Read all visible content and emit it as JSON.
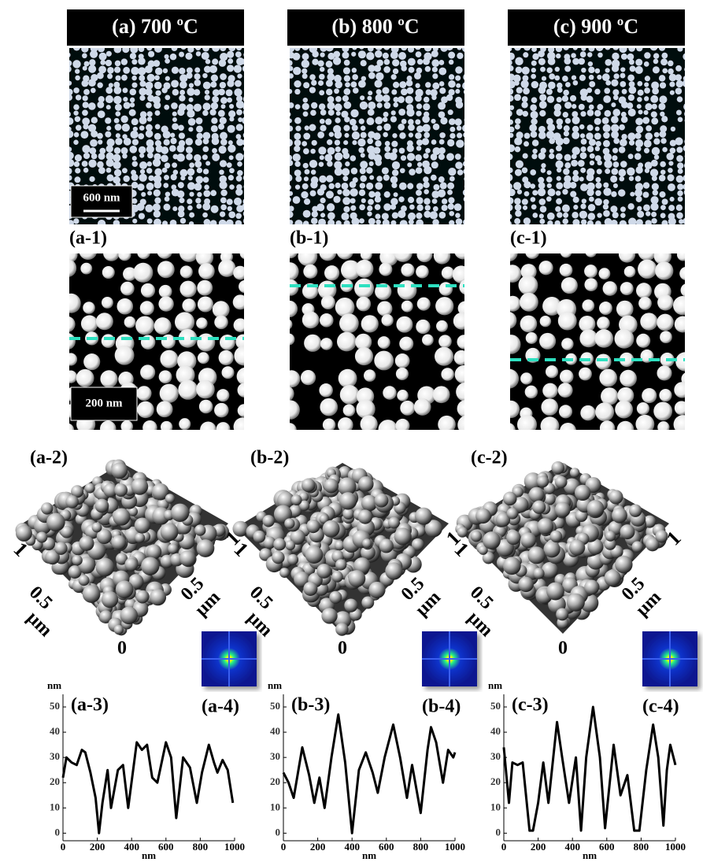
{
  "panels": [
    {
      "title": "(a) 700 ºC",
      "scale_bar": "600 nm",
      "zoom_label": "(a-1)",
      "zoom_scale_bar": "200 nm",
      "view3d_label": "(a-2)",
      "axis_3d": {
        "max": "1",
        "mid": "0.5",
        "unit": "µm",
        "origin": "0"
      },
      "fft_label": "(a-4)",
      "profile": {
        "type": "line",
        "label": "(a-3)",
        "y_unit": "nm",
        "x_unit": "nm",
        "x": [
          0,
          20,
          50,
          80,
          110,
          130,
          160,
          190,
          210,
          230,
          260,
          280,
          320,
          350,
          380,
          430,
          460,
          490,
          520,
          550,
          600,
          630,
          660,
          700,
          740,
          780,
          810,
          850,
          880,
          900,
          930,
          960,
          990
        ],
        "values": [
          22,
          30,
          28,
          27,
          33,
          32,
          24,
          14,
          0,
          12,
          25,
          10,
          25,
          27,
          10,
          36,
          33,
          35,
          22,
          20,
          36,
          30,
          6,
          30,
          26,
          12,
          24,
          35,
          28,
          24,
          29,
          25,
          12
        ],
        "xlim": [
          0,
          1000
        ],
        "ylim": [
          -3,
          55
        ],
        "xticks": [
          0,
          200,
          400,
          600,
          800,
          1000
        ],
        "yticks": [
          0,
          10,
          20,
          30,
          40,
          50
        ]
      }
    },
    {
      "title": "(b) 800 ºC",
      "zoom_label": "(b-1)",
      "view3d_label": "(b-2)",
      "axis_3d": {
        "max": "1",
        "mid": "0.5",
        "unit": "µm",
        "origin": "0"
      },
      "fft_label": "(b-4)",
      "profile": {
        "type": "line",
        "label": "(b-3)",
        "y_unit": "nm",
        "x_unit": "nm",
        "x": [
          0,
          30,
          60,
          110,
          150,
          180,
          210,
          240,
          280,
          320,
          360,
          400,
          440,
          480,
          520,
          550,
          590,
          640,
          680,
          720,
          750,
          800,
          840,
          860,
          890,
          930,
          960,
          990,
          1000
        ],
        "values": [
          24,
          20,
          14,
          34,
          23,
          12,
          22,
          10,
          30,
          47,
          28,
          0,
          25,
          32,
          24,
          16,
          30,
          43,
          30,
          14,
          27,
          8,
          33,
          42,
          36,
          20,
          33,
          30,
          32
        ],
        "xlim": [
          0,
          1000
        ],
        "ylim": [
          -3,
          55
        ],
        "xticks": [
          0,
          200,
          400,
          600,
          800,
          1000
        ],
        "yticks": [
          0,
          10,
          20,
          30,
          40,
          50
        ]
      }
    },
    {
      "title": "(c) 900 ºC",
      "zoom_label": "(c-1)",
      "view3d_label": "(c-2)",
      "axis_3d": {
        "max": "1",
        "mid": "0.5",
        "unit": "µm",
        "origin": "0"
      },
      "fft_label": "(c-4)",
      "profile": {
        "type": "line",
        "label": "(c-3)",
        "y_unit": "nm",
        "x_unit": "nm",
        "x": [
          0,
          30,
          50,
          80,
          110,
          150,
          170,
          200,
          230,
          260,
          310,
          340,
          380,
          420,
          450,
          480,
          520,
          560,
          590,
          640,
          680,
          720,
          760,
          790,
          830,
          870,
          900,
          930,
          950,
          970,
          1000
        ],
        "values": [
          34,
          12,
          28,
          27,
          28,
          1,
          1,
          12,
          28,
          12,
          44,
          30,
          12,
          30,
          1,
          30,
          50,
          30,
          2,
          35,
          15,
          23,
          1,
          1,
          25,
          43,
          30,
          3,
          25,
          35,
          27
        ],
        "xlim": [
          0,
          1000
        ],
        "ylim": [
          -3,
          55
        ],
        "xticks": [
          0,
          200,
          400,
          600,
          800,
          1000
        ],
        "yticks": [
          0,
          10,
          20,
          30,
          40,
          50
        ]
      }
    }
  ]
}
